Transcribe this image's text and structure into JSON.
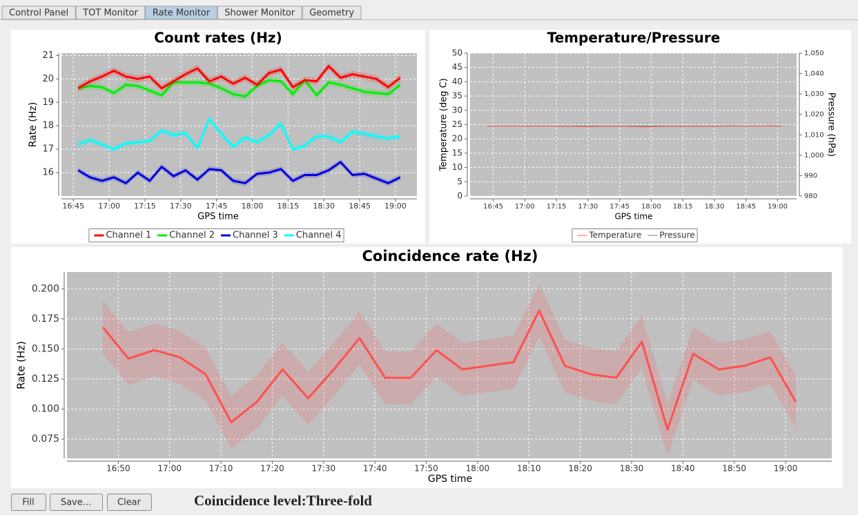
{
  "tabs": [
    "Control Panel",
    "TOT Monitor",
    "Rate Monitor",
    "Shower Monitor",
    "Geometry"
  ],
  "chart_data": [
    {
      "type": "line",
      "title": "Count rates (Hz)",
      "x_label": "GPS time",
      "y_label": "Rate (Hz)",
      "x": [
        1007,
        1012,
        1017,
        1022,
        1027,
        1032,
        1037,
        1042,
        1047,
        1052,
        1057,
        1062,
        1067,
        1072,
        1077,
        1082,
        1087,
        1092,
        1097,
        1102,
        1107,
        1112,
        1117,
        1122,
        1127,
        1132,
        1137,
        1142
      ],
      "xlim": [
        1000,
        1149
      ],
      "xticks": [
        {
          "value": 1005,
          "label": "16:45"
        },
        {
          "value": 1020,
          "label": "17:00"
        },
        {
          "value": 1035,
          "label": "17:15"
        },
        {
          "value": 1050,
          "label": "17:30"
        },
        {
          "value": 1065,
          "label": "17:45"
        },
        {
          "value": 1080,
          "label": "18:00"
        },
        {
          "value": 1095,
          "label": "18:15"
        },
        {
          "value": 1110,
          "label": "18:30"
        },
        {
          "value": 1125,
          "label": "18:45"
        },
        {
          "value": 1140,
          "label": "19:00"
        }
      ],
      "ylim": [
        15.0,
        21.1
      ],
      "yticks": [
        16,
        17,
        18,
        19,
        20,
        21
      ],
      "grid": true,
      "series": [
        {
          "name": "Channel 1",
          "color": "#ff0000",
          "error": 0.15,
          "values": [
            19.6,
            19.9,
            20.1,
            20.35,
            20.1,
            20.0,
            20.1,
            19.6,
            19.9,
            20.2,
            20.45,
            19.9,
            20.1,
            19.8,
            20.05,
            19.75,
            20.25,
            20.4,
            19.65,
            19.95,
            19.9,
            20.55,
            20.05,
            20.2,
            20.1,
            20.0,
            19.65,
            20.05
          ]
        },
        {
          "name": "Channel 2",
          "color": "#00ee00",
          "error": 0.15,
          "values": [
            19.6,
            19.7,
            19.65,
            19.4,
            19.75,
            19.7,
            19.5,
            19.3,
            19.85,
            19.85,
            19.85,
            19.8,
            19.6,
            19.35,
            19.25,
            19.7,
            19.95,
            19.9,
            19.35,
            19.95,
            19.3,
            19.85,
            19.75,
            19.6,
            19.45,
            19.4,
            19.35,
            19.75
          ]
        },
        {
          "name": "Channel 3",
          "color": "#0000dd",
          "error": 0.12,
          "values": [
            16.1,
            15.8,
            15.65,
            15.8,
            15.55,
            16.0,
            15.65,
            16.25,
            15.85,
            16.1,
            15.7,
            16.15,
            16.1,
            15.65,
            15.55,
            15.95,
            16.0,
            16.15,
            15.65,
            15.9,
            15.9,
            16.1,
            16.45,
            15.9,
            15.95,
            15.75,
            15.55,
            15.8
          ]
        },
        {
          "name": "Channel 4",
          "color": "#00ffff",
          "error": 0.13,
          "values": [
            17.2,
            17.4,
            17.2,
            17.0,
            17.25,
            17.3,
            17.35,
            17.8,
            17.6,
            17.7,
            17.05,
            18.3,
            17.65,
            17.1,
            17.5,
            17.3,
            17.6,
            18.1,
            17.0,
            17.15,
            17.55,
            17.55,
            17.3,
            17.75,
            17.65,
            17.55,
            17.45,
            17.55
          ]
        }
      ]
    },
    {
      "type": "line",
      "title": "Temperature/Pressure",
      "x_label": "GPS time",
      "y_label": "Temperature (deg C)",
      "y2_label": "Pressure (hPa)",
      "x": [
        1002,
        1007,
        1012,
        1017,
        1022,
        1027,
        1032,
        1037,
        1042,
        1047,
        1052,
        1057,
        1062,
        1067,
        1072,
        1077,
        1082,
        1087,
        1092,
        1097,
        1102,
        1107,
        1112,
        1117,
        1122,
        1127,
        1132,
        1137,
        1142
      ],
      "xlim": [
        994,
        1149
      ],
      "xticks": [
        {
          "value": 1005,
          "label": "16:45"
        },
        {
          "value": 1020,
          "label": "17:00"
        },
        {
          "value": 1035,
          "label": "17:15"
        },
        {
          "value": 1050,
          "label": "17:30"
        },
        {
          "value": 1065,
          "label": "17:45"
        },
        {
          "value": 1080,
          "label": "18:00"
        },
        {
          "value": 1095,
          "label": "18:15"
        },
        {
          "value": 1110,
          "label": "18:30"
        },
        {
          "value": 1125,
          "label": "18:45"
        },
        {
          "value": 1140,
          "label": "19:00"
        }
      ],
      "ylim": [
        0,
        50
      ],
      "yticks": [
        0,
        5,
        10,
        15,
        20,
        25,
        30,
        35,
        40,
        45,
        50
      ],
      "y2lim": [
        980,
        1050
      ],
      "y2ticks": [
        980,
        990,
        {
          "value": 1000,
          "label": "1,000"
        },
        {
          "value": 1010,
          "label": "1,010"
        },
        {
          "value": 1020,
          "label": "1,020"
        },
        {
          "value": 1030,
          "label": "1,030"
        },
        {
          "value": 1040,
          "label": "1,040"
        },
        {
          "value": 1050,
          "label": "1,050"
        }
      ],
      "grid": true,
      "series": [
        {
          "name": "Temperature",
          "color": "#ff5050",
          "values": [
            24.5,
            24.5,
            24.5,
            24.5,
            24.5,
            24.5,
            24.5,
            24.4,
            24.4,
            24.3,
            24.3,
            24.4,
            24.4,
            24.4,
            24.3,
            24.2,
            24.3,
            24.4,
            24.4,
            24.4,
            24.4,
            24.4,
            24.4,
            24.6,
            24.5,
            24.5,
            24.5,
            24.6,
            24.5
          ]
        },
        {
          "name": "Pressure",
          "color": "#808080",
          "axis": "y2",
          "values": [
            1014.3,
            1014.3,
            1014.3,
            1014.3,
            1014.3,
            1014.3,
            1014.3,
            1014.3,
            1014.3,
            1014.3,
            1014.3,
            1014.3,
            1014.3,
            1014.3,
            1014.3,
            1014.3,
            1014.3,
            1014.3,
            1014.3,
            1014.3,
            1014.3,
            1014.3,
            1014.3,
            1014.3,
            1014.3,
            1014.3,
            1014.3,
            1014.3,
            1014.3
          ]
        }
      ]
    },
    {
      "type": "line",
      "title": "Coincidence rate (Hz)",
      "x_label": "GPS time",
      "y_label": "Rate (Hz)",
      "x": [
        1007,
        1012,
        1017,
        1022,
        1027,
        1032,
        1037,
        1042,
        1047,
        1052,
        1057,
        1062,
        1067,
        1072,
        1077,
        1082,
        1087,
        1092,
        1097,
        1102,
        1107,
        1112,
        1117,
        1122,
        1127,
        1132,
        1137,
        1142
      ],
      "xlim": [
        1000,
        1149
      ],
      "xticks": [
        {
          "value": 1010,
          "label": "16:50"
        },
        {
          "value": 1020,
          "label": "17:00"
        },
        {
          "value": 1030,
          "label": "17:10"
        },
        {
          "value": 1040,
          "label": "17:20"
        },
        {
          "value": 1050,
          "label": "17:30"
        },
        {
          "value": 1060,
          "label": "17:40"
        },
        {
          "value": 1070,
          "label": "17:50"
        },
        {
          "value": 1080,
          "label": "18:00"
        },
        {
          "value": 1090,
          "label": "18:10"
        },
        {
          "value": 1100,
          "label": "18:20"
        },
        {
          "value": 1110,
          "label": "18:30"
        },
        {
          "value": 1120,
          "label": "18:40"
        },
        {
          "value": 1130,
          "label": "18:50"
        },
        {
          "value": 1140,
          "label": "19:00"
        }
      ],
      "ylim": [
        0.059,
        0.214
      ],
      "yticks": [
        {
          "value": 0.075,
          "label": "0.075"
        },
        {
          "value": 0.1,
          "label": "0.100"
        },
        {
          "value": 0.125,
          "label": "0.125"
        },
        {
          "value": 0.15,
          "label": "0.150"
        },
        {
          "value": 0.175,
          "label": "0.175"
        },
        {
          "value": 0.2,
          "label": "0.200"
        }
      ],
      "grid": true,
      "series": [
        {
          "color": "#ff5050",
          "error": 0.022,
          "values": [
            0.168,
            0.142,
            0.149,
            0.143,
            0.129,
            0.089,
            0.106,
            0.133,
            0.109,
            0.133,
            0.159,
            0.126,
            0.126,
            0.149,
            0.133,
            0.136,
            0.139,
            0.182,
            0.136,
            0.129,
            0.126,
            0.156,
            0.083,
            0.146,
            0.133,
            0.136,
            0.143,
            0.106
          ]
        }
      ]
    }
  ],
  "buttons": [
    "Fill",
    "Save...",
    "Clear"
  ],
  "coincidence_level": "Coincidence level:Three-fold"
}
